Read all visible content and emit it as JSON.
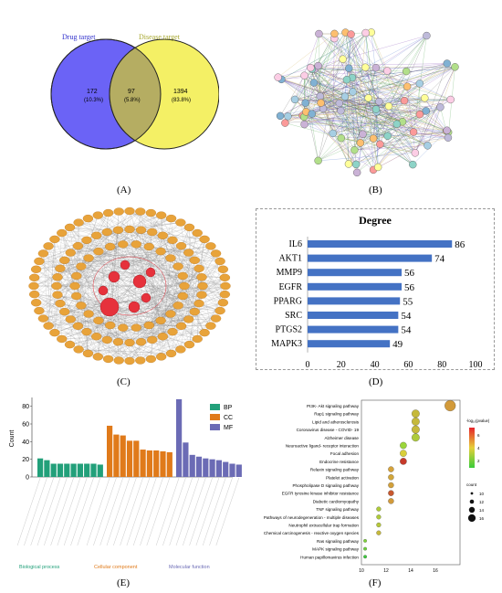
{
  "labels": {
    "A": "(A)",
    "B": "(B)",
    "C": "(C)",
    "D": "(D)",
    "E": "(E)",
    "F": "(F)"
  },
  "venn": {
    "left_title": "Drug target",
    "right_title": "Disease target",
    "left_value": "172",
    "left_pct": "(10.3%)",
    "mid_value": "97",
    "mid_pct": "(5.8%)",
    "right_value": "1394",
    "right_pct": "(83.8%)",
    "colors": {
      "left": "#6b63f6",
      "right": "#f4f065",
      "overlap": "#b5ad62",
      "left_text": "#3333cc",
      "right_text": "#a8a830"
    }
  },
  "network_b": {
    "node_count": 80
  },
  "network_c": {
    "node_color": "#e8a33a",
    "core_color": "#e6323c"
  },
  "chart_data": [
    {
      "type": "bar",
      "orientation": "horizontal",
      "title": "Degree",
      "categories": [
        "IL6",
        "AKT1",
        "MMP9",
        "EGFR",
        "PPARG",
        "SRC",
        "PTGS2",
        "MAPK3"
      ],
      "values": [
        86,
        74,
        56,
        56,
        55,
        54,
        54,
        49
      ],
      "value_labels": [
        "86",
        "74",
        "56",
        "56",
        "55",
        "54",
        "54",
        "49"
      ],
      "xlim": [
        0,
        100
      ],
      "xticks": [
        "0",
        "20",
        "40",
        "60",
        "80",
        "100"
      ],
      "color": "#4472c4"
    },
    {
      "type": "bar",
      "ylabel": "Count",
      "ylim": [
        0,
        90
      ],
      "yticks": [
        "0",
        "20",
        "40",
        "60",
        "80"
      ],
      "series": [
        {
          "name": "BP",
          "color": "#22a07a",
          "group_label": "Biological process",
          "values": [
            21,
            19,
            15,
            15,
            15,
            15,
            15,
            15,
            15,
            14
          ]
        },
        {
          "name": "CC",
          "color": "#e07a1a",
          "group_label": "Cellular component",
          "values": [
            58,
            48,
            47,
            41,
            41,
            31,
            30,
            30,
            29,
            28
          ]
        },
        {
          "name": "MF",
          "color": "#6b6bb5",
          "group_label": "Molecular function",
          "values": [
            88,
            39,
            25,
            23,
            21,
            20,
            19,
            17,
            15,
            14
          ]
        }
      ]
    },
    {
      "type": "scatter",
      "title": "",
      "xlim": [
        10,
        18
      ],
      "xticks": [
        "10",
        "12",
        "14",
        "16"
      ],
      "categories": [
        "PI3K- Akt signaling pathway",
        "Rap1 signaling pathway",
        "Lipid and atherosclerosis",
        "Coronavirus disease - COVID- 19",
        "Alzheimer disease",
        "Neuroactive ligand- receptor interaction",
        "Focal adhesion",
        "Endocrine resistance",
        "Relaxin signaling pathway",
        "Platelet activation",
        "Phospholipase D signaling pathway",
        "EGFR tyrosine kinase inhibitor resistance",
        "Diabetic cardiomyopathy",
        "TNF signaling pathway",
        "Pathways of neurodegeneration - multiple diseases",
        "Neutrophil extracellular trap formation",
        "Chemical carcinogenesis - reactive oxygen species",
        "Ras signaling pathway",
        "MAPK signaling pathway",
        "Human papillomavirus infection"
      ],
      "x": [
        17.2,
        14.4,
        14.4,
        14.4,
        14.4,
        13.4,
        13.4,
        13.4,
        12.4,
        12.4,
        12.4,
        12.4,
        12.4,
        11.4,
        11.4,
        11.4,
        11.4,
        10.3,
        10.3,
        10.3
      ],
      "colors": [
        "#d29a3a",
        "#c6b93a",
        "#c6b93a",
        "#c6b93a",
        "#aecb3a",
        "#9bd63a",
        "#d8cf3a",
        "#c63a2a",
        "#d6a23a",
        "#d2a63a",
        "#d2a03a",
        "#c8582e",
        "#d29a3a",
        "#aecb3a",
        "#aecb3a",
        "#b6c83a",
        "#c6b93a",
        "#7ed23a",
        "#6cd23a",
        "#3acb3a"
      ],
      "legend_color_title": "-log₁₀(pvalue)",
      "legend_color_ticks": [
        "6",
        "4",
        "2"
      ],
      "legend_size_title": "count",
      "legend_size_ticks": [
        "10",
        "12",
        "14",
        "16"
      ]
    }
  ]
}
